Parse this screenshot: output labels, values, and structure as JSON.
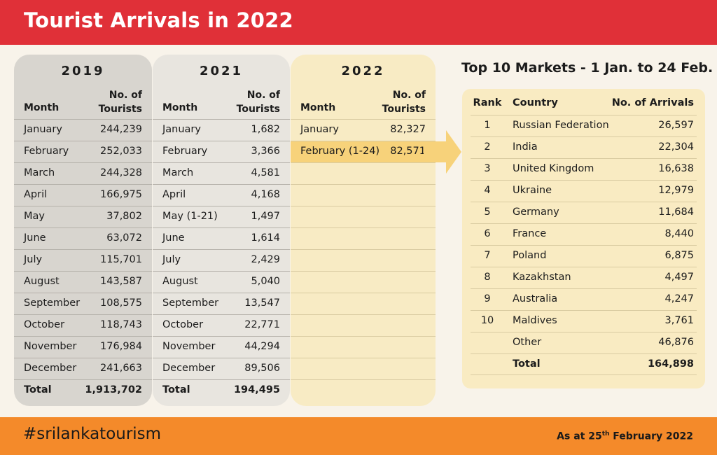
{
  "title": "Tourist Arrivals in 2022",
  "footer": {
    "hashtag_plain1": "#srilanka",
    "hashtag_bold": "",
    "hashtag_plain2": "tourism",
    "as_at_prefix": "As at 25",
    "as_at_sup": "th",
    "as_at_suffix": " February 2022"
  },
  "colors": {
    "header": "#e03038",
    "footer": "#f48a2a",
    "highlight": "#f7d27a",
    "arrow": "#f7d27a"
  },
  "chart_data": [
    {
      "type": "table",
      "title": "2019",
      "columns": [
        "Month",
        "No. of Tourists"
      ],
      "col_month": "Month",
      "col_tourists": "No. of Tourists",
      "rows": [
        {
          "month": "January",
          "tourists": "244,239"
        },
        {
          "month": "February",
          "tourists": "252,033"
        },
        {
          "month": "March",
          "tourists": "244,328"
        },
        {
          "month": "April",
          "tourists": "166,975"
        },
        {
          "month": "May",
          "tourists": "37,802"
        },
        {
          "month": "June",
          "tourists": "63,072"
        },
        {
          "month": "July",
          "tourists": "115,701"
        },
        {
          "month": "August",
          "tourists": "143,587"
        },
        {
          "month": "September",
          "tourists": "108,575"
        },
        {
          "month": "October",
          "tourists": "118,743"
        },
        {
          "month": "November",
          "tourists": "176,984"
        },
        {
          "month": "December",
          "tourists": "241,663"
        }
      ],
      "total_label": "Total",
      "total": "1,913,702"
    },
    {
      "type": "table",
      "title": "2021",
      "columns": [
        "Month",
        "No. of Tourists"
      ],
      "col_month": "Month",
      "col_tourists": "No. of Tourists",
      "rows": [
        {
          "month": "January",
          "tourists": "1,682"
        },
        {
          "month": "February",
          "tourists": "3,366"
        },
        {
          "month": "March",
          "tourists": "4,581"
        },
        {
          "month": "April",
          "tourists": "4,168"
        },
        {
          "month": "May (1-21)",
          "tourists": "1,497"
        },
        {
          "month": "June",
          "tourists": "1,614"
        },
        {
          "month": "July",
          "tourists": "2,429"
        },
        {
          "month": "August",
          "tourists": "5,040"
        },
        {
          "month": "September",
          "tourists": "13,547"
        },
        {
          "month": "October",
          "tourists": "22,771"
        },
        {
          "month": "November",
          "tourists": "44,294"
        },
        {
          "month": "December",
          "tourists": "89,506"
        }
      ],
      "total_label": "Total",
      "total": "194,495"
    },
    {
      "type": "table",
      "title": "2022",
      "columns": [
        "Month",
        "No. of Tourists"
      ],
      "col_month": "Month",
      "col_tourists": "No. of Tourists",
      "rows": [
        {
          "month": "January",
          "tourists": "82,327"
        },
        {
          "month": "February (1-24)",
          "tourists": "82,571",
          "highlight": true
        }
      ]
    },
    {
      "type": "table",
      "title": "Top 10 Markets - 1 Jan. to 24 Feb.",
      "columns": [
        "Rank",
        "Country",
        "No. of Arrivals"
      ],
      "col_rank": "Rank",
      "col_country": "Country",
      "col_arrivals": "No. of Arrivals",
      "rows": [
        {
          "rank": "1",
          "country": "Russian Federation",
          "arrivals": "26,597"
        },
        {
          "rank": "2",
          "country": "India",
          "arrivals": "22,304"
        },
        {
          "rank": "3",
          "country": "United Kingdom",
          "arrivals": "16,638"
        },
        {
          "rank": "4",
          "country": "Ukraine",
          "arrivals": "12,979"
        },
        {
          "rank": "5",
          "country": "Germany",
          "arrivals": "11,684"
        },
        {
          "rank": "6",
          "country": "France",
          "arrivals": "8,440"
        },
        {
          "rank": "7",
          "country": "Poland",
          "arrivals": "6,875"
        },
        {
          "rank": "8",
          "country": "Kazakhstan",
          "arrivals": "4,497"
        },
        {
          "rank": "9",
          "country": "Australia",
          "arrivals": "4,247"
        },
        {
          "rank": "10",
          "country": "Maldives",
          "arrivals": "3,761"
        }
      ],
      "other_label": "Other",
      "other": "46,876",
      "total_label": "Total",
      "total": "164,898"
    }
  ]
}
